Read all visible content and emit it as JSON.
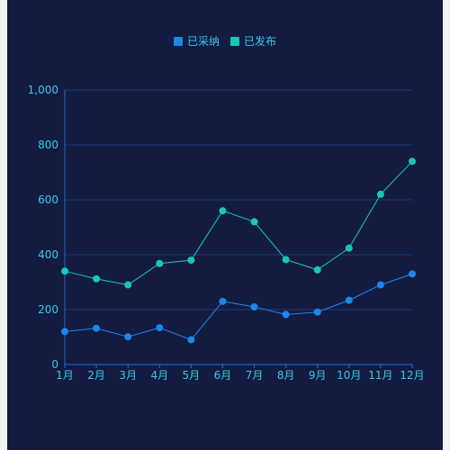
{
  "chart_data": {
    "type": "line",
    "categories": [
      "1月",
      "2月",
      "3月",
      "4月",
      "5月",
      "6月",
      "7月",
      "8月",
      "9月",
      "10月",
      "11月",
      "12月"
    ],
    "series": [
      {
        "name": "已采纳",
        "color": "#1a88e8",
        "values": [
          120,
          132,
          101,
          134,
          90,
          230,
          210,
          182,
          191,
          234,
          290,
          330
        ]
      },
      {
        "name": "已发布",
        "color": "#18c7b7",
        "values": [
          340,
          312,
          290,
          368,
          380,
          560,
          520,
          382,
          345,
          424,
          620,
          740
        ]
      }
    ],
    "yticks": [
      "0",
      "200",
      "400",
      "600",
      "800",
      "1,000"
    ],
    "ylim": [
      0,
      1000
    ],
    "grid": true,
    "legend_position": "top-center",
    "colors": {
      "background": "#131b40",
      "axis": "#1c6fd4",
      "grid": "#1d3a7a",
      "label": "#37c9e6"
    }
  }
}
